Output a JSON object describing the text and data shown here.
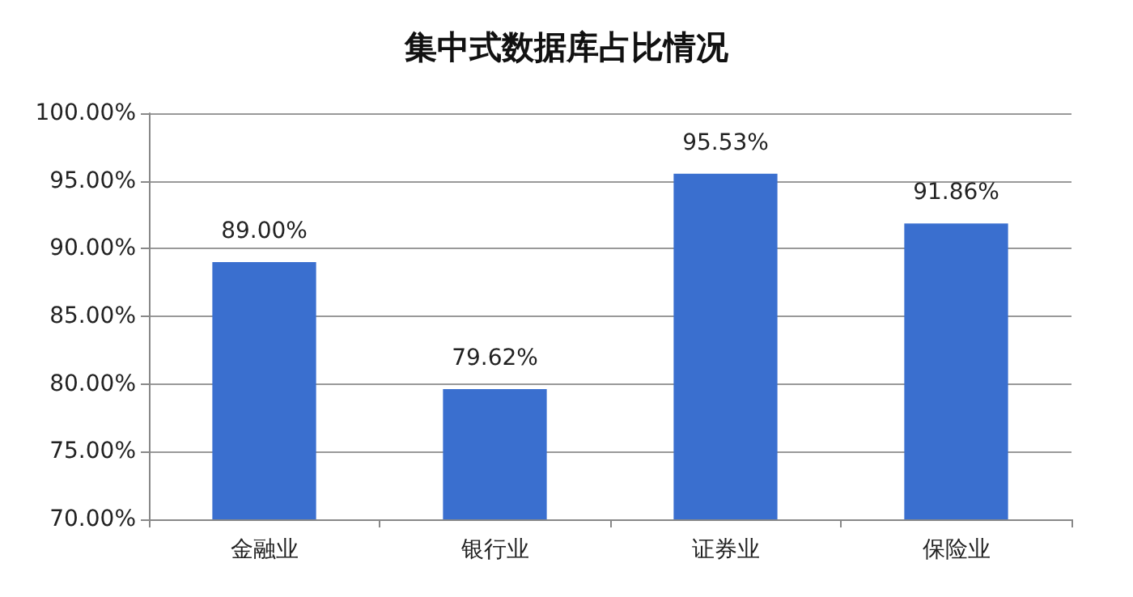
{
  "chart_data": {
    "type": "bar",
    "title": "集中式数据库占比情况",
    "categories": [
      "金融业",
      "银行业",
      "证券业",
      "保险业"
    ],
    "values": [
      89.0,
      79.62,
      95.53,
      91.86
    ],
    "value_labels": [
      "89.00%",
      "79.62%",
      "95.53%",
      "91.86%"
    ],
    "color": "#3a6fcf",
    "ylim": [
      70,
      100
    ],
    "yticks": [
      {
        "value": 70,
        "label": "70.00%"
      },
      {
        "value": 75,
        "label": "75.00%"
      },
      {
        "value": 80,
        "label": "80.00%"
      },
      {
        "value": 85,
        "label": "85.00%"
      },
      {
        "value": 90,
        "label": "90.00%"
      },
      {
        "value": 95,
        "label": "95.00%"
      },
      {
        "value": 100,
        "label": "100.00%"
      }
    ],
    "grid": "y"
  }
}
